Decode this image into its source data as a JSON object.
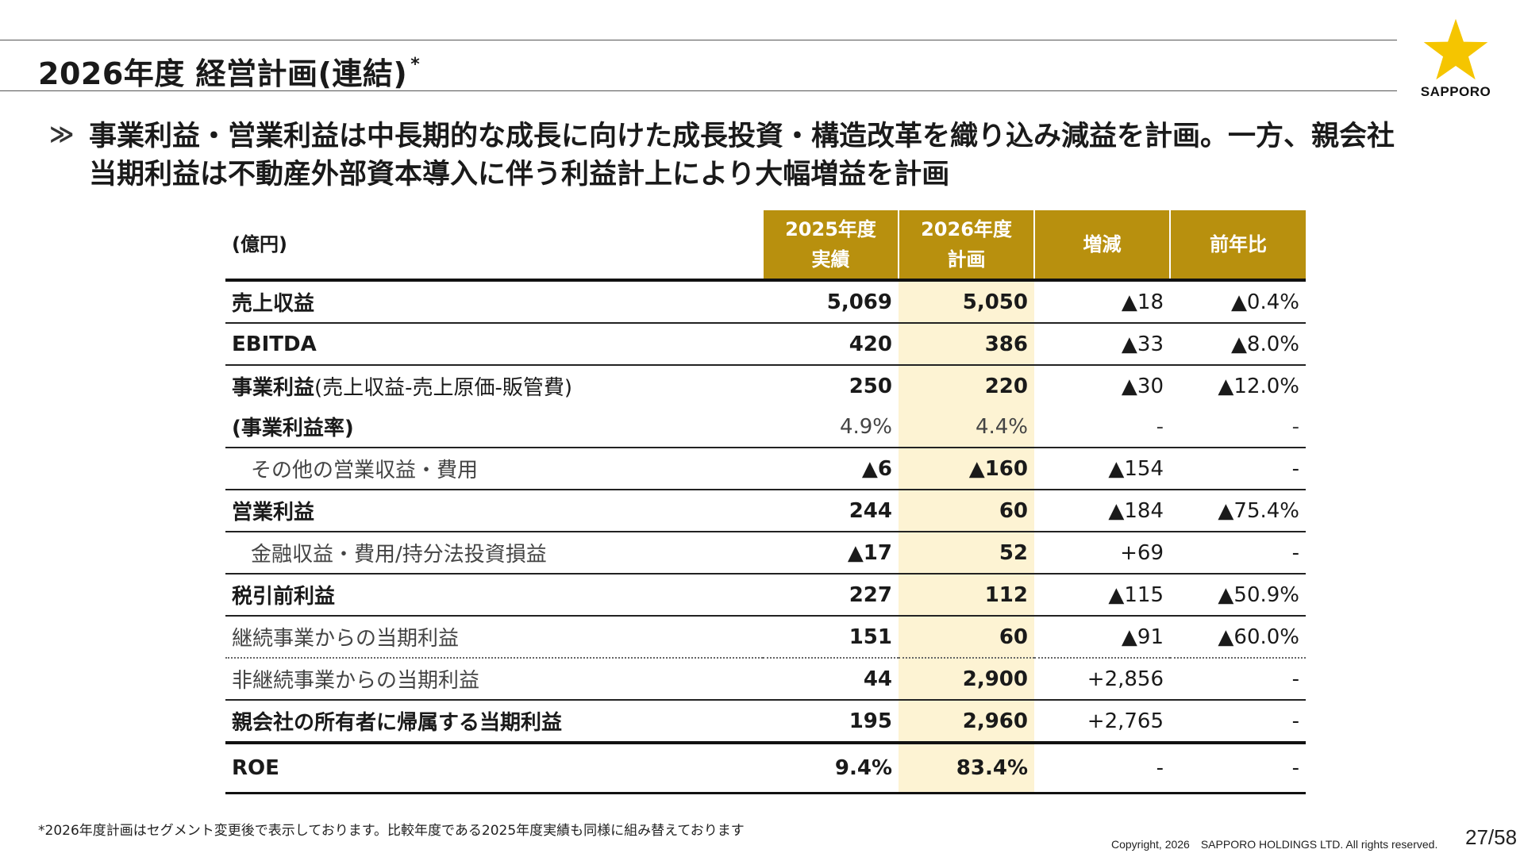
{
  "header": {
    "title": "2026年度 経営計画(連結)",
    "title_mark": "*"
  },
  "logo": {
    "icon": "star-icon",
    "color": "#F5C500",
    "text": "SAPPORO"
  },
  "headline": {
    "bullet": "≫",
    "line1": "事業利益・営業利益は中長期的な成長に向けた成長投資・構造改革を織り込み減益を計画。一方、親会社",
    "line2": "当期利益は不動産外部資本導入に伴う利益計上により大幅増益を計画"
  },
  "table": {
    "unit": "(億円)",
    "columns": [
      {
        "line1": "2025年度",
        "line2": "実績"
      },
      {
        "line1": "2026年度",
        "line2": "計画"
      },
      {
        "line1": "増減",
        "line2": ""
      },
      {
        "line1": "前年比",
        "line2": ""
      }
    ],
    "header_color": "#B8900E",
    "highlight_color": "#FDF3D3",
    "rows": [
      {
        "label": "売上収益",
        "label_sub": "",
        "v2025": "5,069",
        "v2026": "5,050",
        "change": "▲18",
        "ratio": "▲0.4%"
      },
      {
        "label": "EBITDA",
        "label_sub": "",
        "v2025": "420",
        "v2026": "386",
        "change": "▲33",
        "ratio": "▲8.0%"
      },
      {
        "label": "事業利益",
        "label_sub": "(売上収益-売上原価-販管費)",
        "v2025": "250",
        "v2026": "220",
        "change": "▲30",
        "ratio": "▲12.0%"
      },
      {
        "label": "(事業利益率)",
        "label_sub": "",
        "v2025": "4.9%",
        "v2026": "4.4%",
        "change": "-",
        "ratio": "-"
      },
      {
        "label": "その他の営業収益・費用",
        "label_sub": "",
        "v2025": "▲6",
        "v2026": "▲160",
        "change": "▲154",
        "ratio": "-"
      },
      {
        "label": "営業利益",
        "label_sub": "",
        "v2025": "244",
        "v2026": "60",
        "change": "▲184",
        "ratio": "▲75.4%"
      },
      {
        "label": "金融収益・費用/持分法投資損益",
        "label_sub": "",
        "v2025": "▲17",
        "v2026": "52",
        "change": "+69",
        "ratio": "-"
      },
      {
        "label": "税引前利益",
        "label_sub": "",
        "v2025": "227",
        "v2026": "112",
        "change": "▲115",
        "ratio": "▲50.9%"
      },
      {
        "label": "継続事業からの当期利益",
        "label_sub": "",
        "v2025": "151",
        "v2026": "60",
        "change": "▲91",
        "ratio": "▲60.0%"
      },
      {
        "label": "非継続事業からの当期利益",
        "label_sub": "",
        "v2025": "44",
        "v2026": "2,900",
        "change": "+2,856",
        "ratio": "-"
      },
      {
        "label": "親会社の所有者に帰属する当期利益",
        "label_sub": "",
        "v2025": "195",
        "v2026": "2,960",
        "change": "+2,765",
        "ratio": "-"
      },
      {
        "label": "ROE",
        "label_sub": "",
        "v2025": "9.4%",
        "v2026": "83.4%",
        "change": "-",
        "ratio": "-"
      }
    ]
  },
  "footer": {
    "footnote": "*2026年度計画はセグメント変更後で表示しております。比較年度である2025年度実績も同様に組み替えております",
    "copyright": "Copyright, 2026　SAPPORO HOLDINGS LTD.  All rights reserved.",
    "page": "27/58"
  }
}
